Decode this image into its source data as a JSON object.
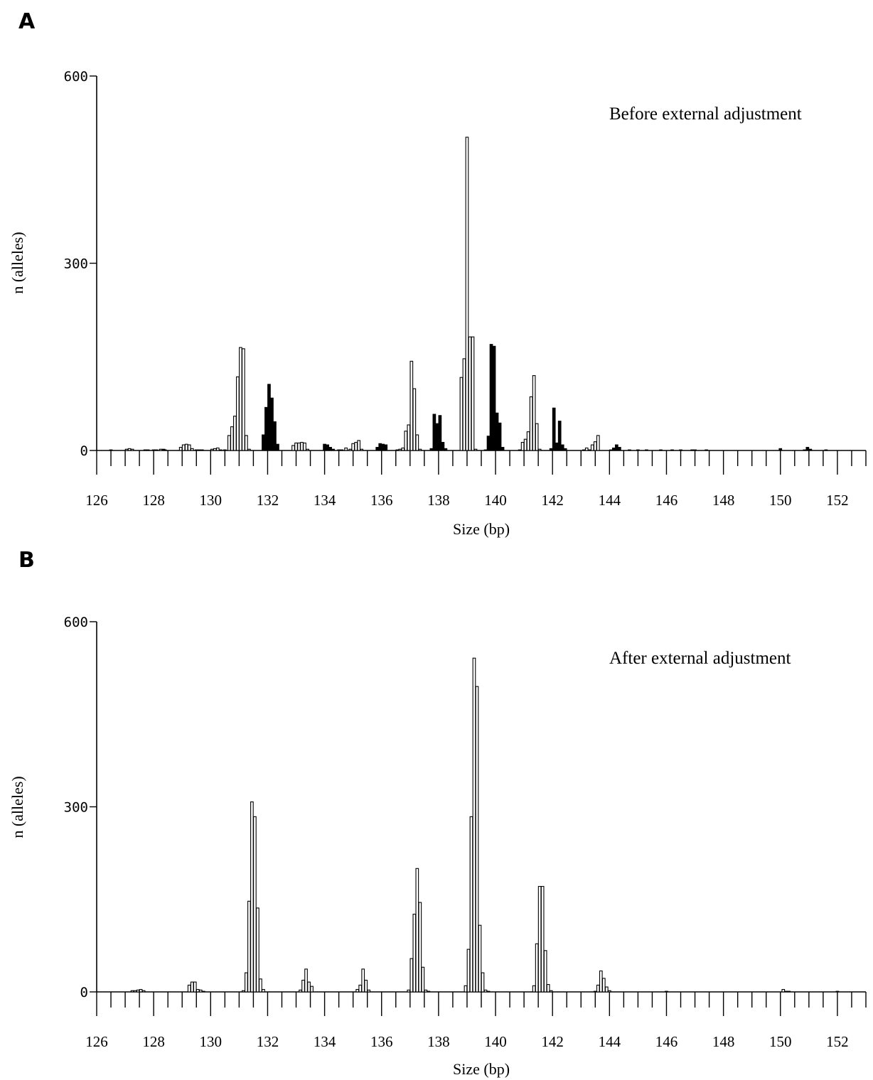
{
  "chart_data": [
    {
      "type": "bar",
      "panel": "A",
      "title": "Before external adjustment",
      "xlabel": "Size (bp)",
      "ylabel": "n (alleles)",
      "xlim": [
        126,
        153
      ],
      "ylim": [
        0,
        600
      ],
      "xticks": [
        126,
        128,
        130,
        132,
        134,
        136,
        138,
        140,
        142,
        144,
        146,
        148,
        150,
        152
      ],
      "yticks": [
        0,
        300,
        600
      ],
      "grid": false,
      "series": [
        {
          "fill": "open",
          "x": [
            126.5,
            127.05,
            127.15,
            127.25,
            128.0,
            128.1,
            128.25,
            128.4,
            128.95,
            129.05,
            129.15,
            129.25,
            129.35,
            129.5,
            129.6,
            129.7,
            130.05,
            130.15,
            130.25,
            130.35,
            130.5,
            130.65,
            130.75,
            130.85,
            130.95,
            131.05,
            131.15,
            131.25,
            131.35,
            132.9,
            133.0,
            133.1,
            133.2,
            133.3,
            133.4,
            134.6,
            134.75,
            134.9,
            135.0,
            135.1,
            135.2,
            135.3,
            136.55,
            136.65,
            136.75,
            136.85,
            136.95,
            137.05,
            137.15,
            137.25,
            137.35,
            138.8,
            138.9,
            139.0,
            139.1,
            139.2,
            139.3,
            140.85,
            140.95,
            141.05,
            141.15,
            141.25,
            141.35,
            141.45,
            141.55,
            143.1,
            143.2,
            143.3,
            143.4,
            143.5,
            143.6,
            144.7,
            145.3,
            146.2,
            146.5,
            147.0,
            147.4,
            151.6
          ],
          "y": [
            1,
            2,
            3,
            2,
            1,
            1,
            2,
            1,
            5,
            9,
            10,
            9,
            3,
            1,
            1,
            1,
            2,
            3,
            4,
            1,
            1,
            24,
            38,
            55,
            118,
            165,
            163,
            24,
            2,
            8,
            12,
            12,
            13,
            12,
            2,
            1,
            4,
            2,
            11,
            13,
            16,
            2,
            1,
            2,
            4,
            31,
            41,
            143,
            99,
            25,
            2,
            117,
            147,
            502,
            182,
            182,
            2,
            1,
            13,
            18,
            30,
            86,
            120,
            43,
            2,
            1,
            4,
            1,
            9,
            14,
            24,
            1,
            1,
            1,
            1,
            1,
            1,
            1
          ]
        },
        {
          "fill": "solid",
          "x": [
            127.7,
            127.8,
            128.35,
            131.85,
            131.95,
            132.05,
            132.15,
            132.25,
            132.35,
            134.0,
            134.1,
            134.2,
            134.3,
            134.5,
            135.85,
            135.95,
            136.05,
            136.15,
            137.75,
            137.85,
            137.95,
            138.05,
            138.15,
            138.25,
            139.65,
            139.75,
            139.85,
            139.95,
            140.05,
            140.15,
            140.25,
            141.95,
            142.05,
            142.15,
            142.25,
            142.35,
            142.45,
            144.05,
            144.15,
            144.25,
            144.35,
            145.0,
            145.8,
            146.9,
            150.0,
            150.85,
            150.95,
            151.05
          ],
          "y": [
            1,
            1,
            2,
            25,
            69,
            106,
            84,
            46,
            10,
            10,
            9,
            5,
            2,
            1,
            5,
            11,
            10,
            9,
            3,
            58,
            43,
            56,
            13,
            3,
            1,
            23,
            170,
            167,
            60,
            44,
            5,
            3,
            68,
            12,
            47,
            9,
            3,
            1,
            4,
            9,
            5,
            1,
            1,
            1,
            3,
            1,
            5,
            2
          ]
        }
      ]
    },
    {
      "type": "bar",
      "panel": "B",
      "title": "After external adjustment",
      "xlabel": "Size (bp)",
      "ylabel": "n (alleles)",
      "xlim": [
        126,
        153
      ],
      "ylim": [
        0,
        600
      ],
      "xticks": [
        126,
        128,
        130,
        132,
        134,
        136,
        138,
        140,
        142,
        144,
        146,
        148,
        150,
        152
      ],
      "yticks": [
        0,
        300,
        600
      ],
      "grid": false,
      "series": [
        {
          "fill": "open",
          "x": [
            127.25,
            127.35,
            127.45,
            127.55,
            127.65,
            129.25,
            129.35,
            129.45,
            129.55,
            129.65,
            129.75,
            131.15,
            131.25,
            131.35,
            131.45,
            131.55,
            131.65,
            131.75,
            131.85,
            133.15,
            133.25,
            133.35,
            133.45,
            133.55,
            135.15,
            135.25,
            135.35,
            135.45,
            135.55,
            136.95,
            137.05,
            137.15,
            137.25,
            137.35,
            137.45,
            137.55,
            137.65,
            138.95,
            139.05,
            139.15,
            139.25,
            139.35,
            139.45,
            139.55,
            139.65,
            139.75,
            141.35,
            141.45,
            141.55,
            141.65,
            141.75,
            141.85,
            141.95,
            143.5,
            143.6,
            143.7,
            143.8,
            143.9,
            144.0,
            146.0,
            150.1,
            150.2,
            150.3,
            152.0
          ],
          "y": [
            2,
            2,
            3,
            4,
            2,
            11,
            16,
            16,
            4,
            3,
            1,
            2,
            31,
            147,
            308,
            284,
            136,
            21,
            4,
            3,
            19,
            37,
            16,
            9,
            4,
            11,
            37,
            19,
            3,
            3,
            54,
            126,
            200,
            145,
            40,
            3,
            1,
            10,
            69,
            284,
            541,
            495,
            108,
            31,
            3,
            1,
            10,
            78,
            171,
            171,
            67,
            12,
            2,
            1,
            11,
            34,
            22,
            8,
            2,
            1,
            4,
            1,
            1,
            1
          ]
        }
      ]
    }
  ]
}
